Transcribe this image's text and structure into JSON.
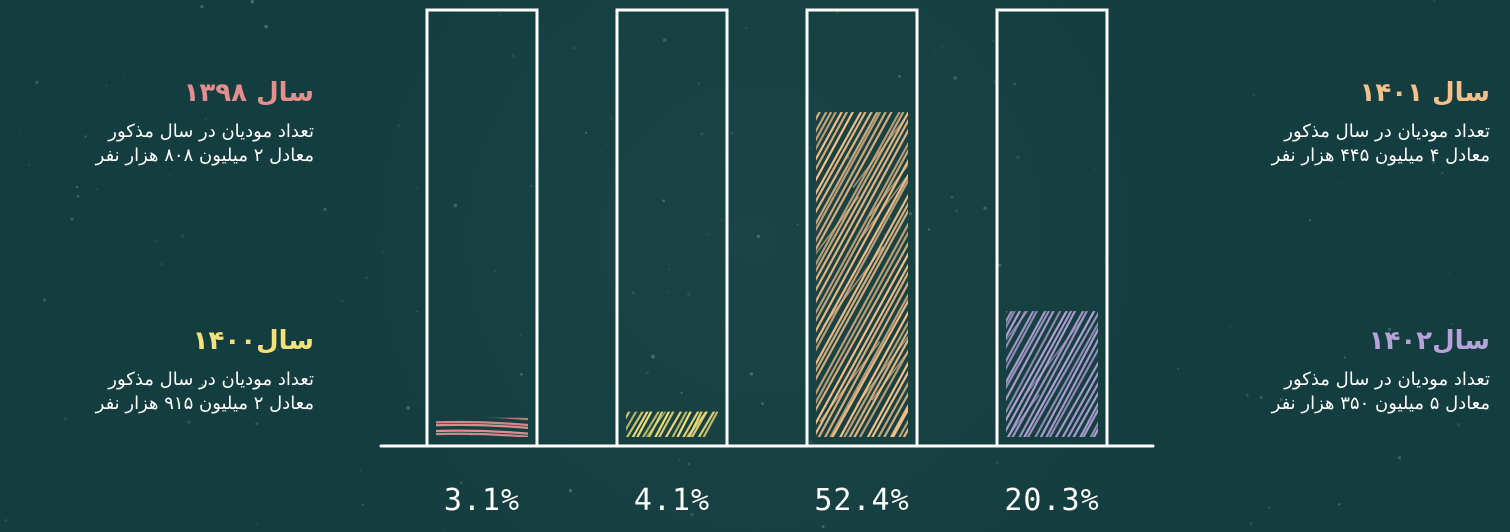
{
  "chart_data": {
    "type": "bar",
    "categories": [
      "سال ۱۳۹۸",
      "سال۱۴۰۰",
      "سال ۱۴۰۱",
      "سال۱۴۰۲"
    ],
    "values": [
      3.1,
      4.1,
      52.4,
      20.3
    ],
    "value_labels": [
      "3.1%",
      "4.1%",
      "52.4%",
      "20.3%"
    ],
    "ylim": [
      0,
      60
    ],
    "grid": false,
    "colors": [
      "#e48f8f",
      "#f5e17a",
      "#f7c08a",
      "#b7a2d9"
    ]
  },
  "legend": {
    "y1398": {
      "title": "سال ۱۳۹۸",
      "line1": "تعداد مودیان در سال مذکور",
      "line2": "معادل ۲ میلیون ۸۰۸ هزار نفر"
    },
    "y1400": {
      "title": "سال۱۴۰۰",
      "line1": "تعداد مودیان در سال مذکور",
      "line2": "معادل ۲ میلیون ۹۱۵ هزار نفر"
    },
    "y1401": {
      "title": "سال ۱۴۰۱",
      "line1": "تعداد مودیان در سال مذکور",
      "line2": "معادل ۴ میلیون ۴۴۵ هزار نفر"
    },
    "y1402": {
      "title": "سال۱۴۰۲",
      "line1": "تعداد مودیان در سال مذکور",
      "line2": "معادل ۵ میلیون ۳۵۰ هزار نفر"
    }
  }
}
